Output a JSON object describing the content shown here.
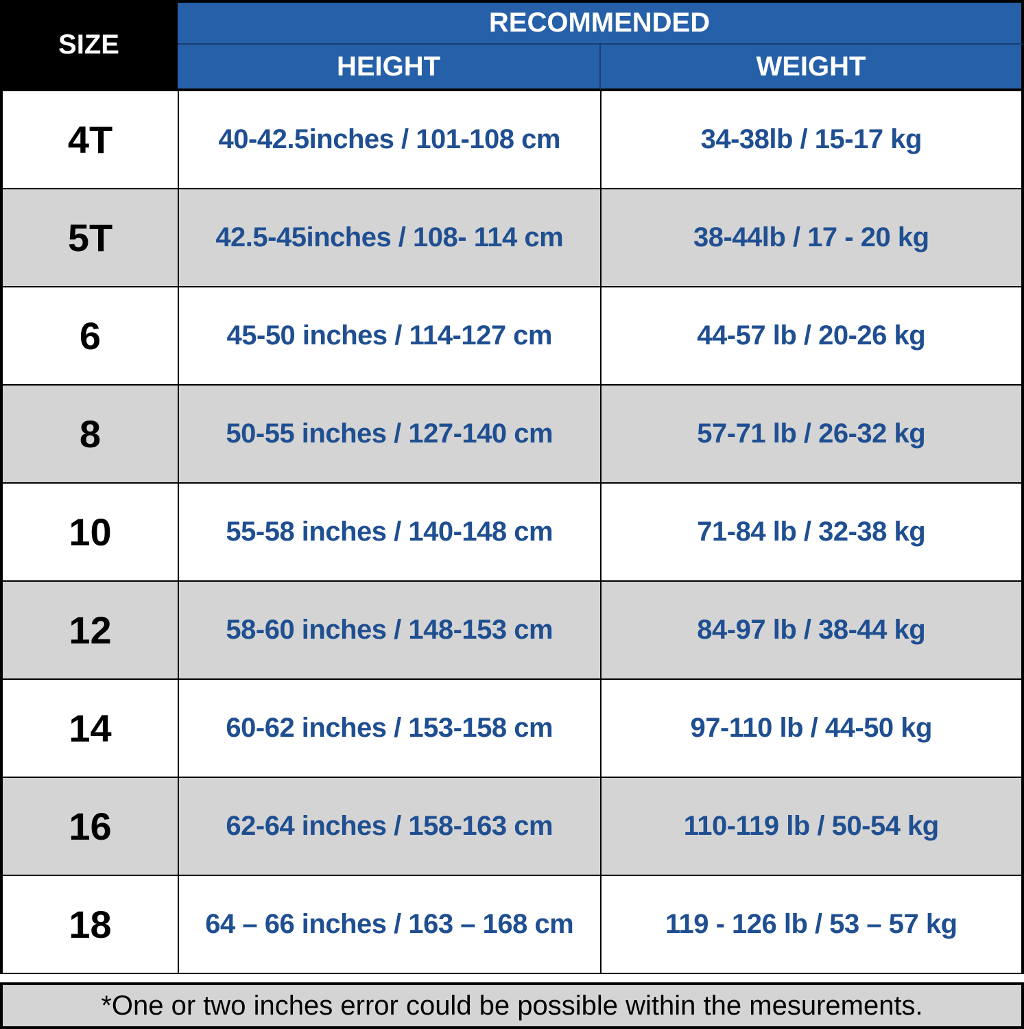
{
  "header": {
    "size": "SIZE",
    "recommended": "RECOMMENDED",
    "height": "HEIGHT",
    "weight": "WEIGHT"
  },
  "colors": {
    "header_blue": "#2660a8",
    "value_blue": "#1f4f91",
    "alt_row": "#d4d4d4"
  },
  "rows": [
    {
      "size": "4T",
      "height": "40-42.5inches / 101-108 cm",
      "weight": "34-38lb / 15-17 kg"
    },
    {
      "size": "5T",
      "height": "42.5-45inches / 108- 114 cm",
      "weight": "38-44lb / 17 - 20 kg"
    },
    {
      "size": "6",
      "height": "45-50 inches / 114-127 cm",
      "weight": "44-57 lb / 20-26 kg"
    },
    {
      "size": "8",
      "height": "50-55 inches / 127-140 cm",
      "weight": "57-71 lb / 26-32 kg"
    },
    {
      "size": "10",
      "height": "55-58 inches / 140-148 cm",
      "weight": "71-84 lb / 32-38 kg"
    },
    {
      "size": "12",
      "height": "58-60 inches / 148-153 cm",
      "weight": "84-97 lb / 38-44 kg"
    },
    {
      "size": "14",
      "height": "60-62 inches / 153-158 cm",
      "weight": "97-110 lb / 44-50 kg"
    },
    {
      "size": "16",
      "height": "62-64 inches / 158-163 cm",
      "weight": "110-119 lb / 50-54 kg"
    },
    {
      "size": "18",
      "height": "64 – 66 inches / 163 – 168 cm",
      "weight": "119 - 126 lb / 53 – 57 kg"
    }
  ],
  "footnote": "*One or two inches error could be possible within the mesurements."
}
